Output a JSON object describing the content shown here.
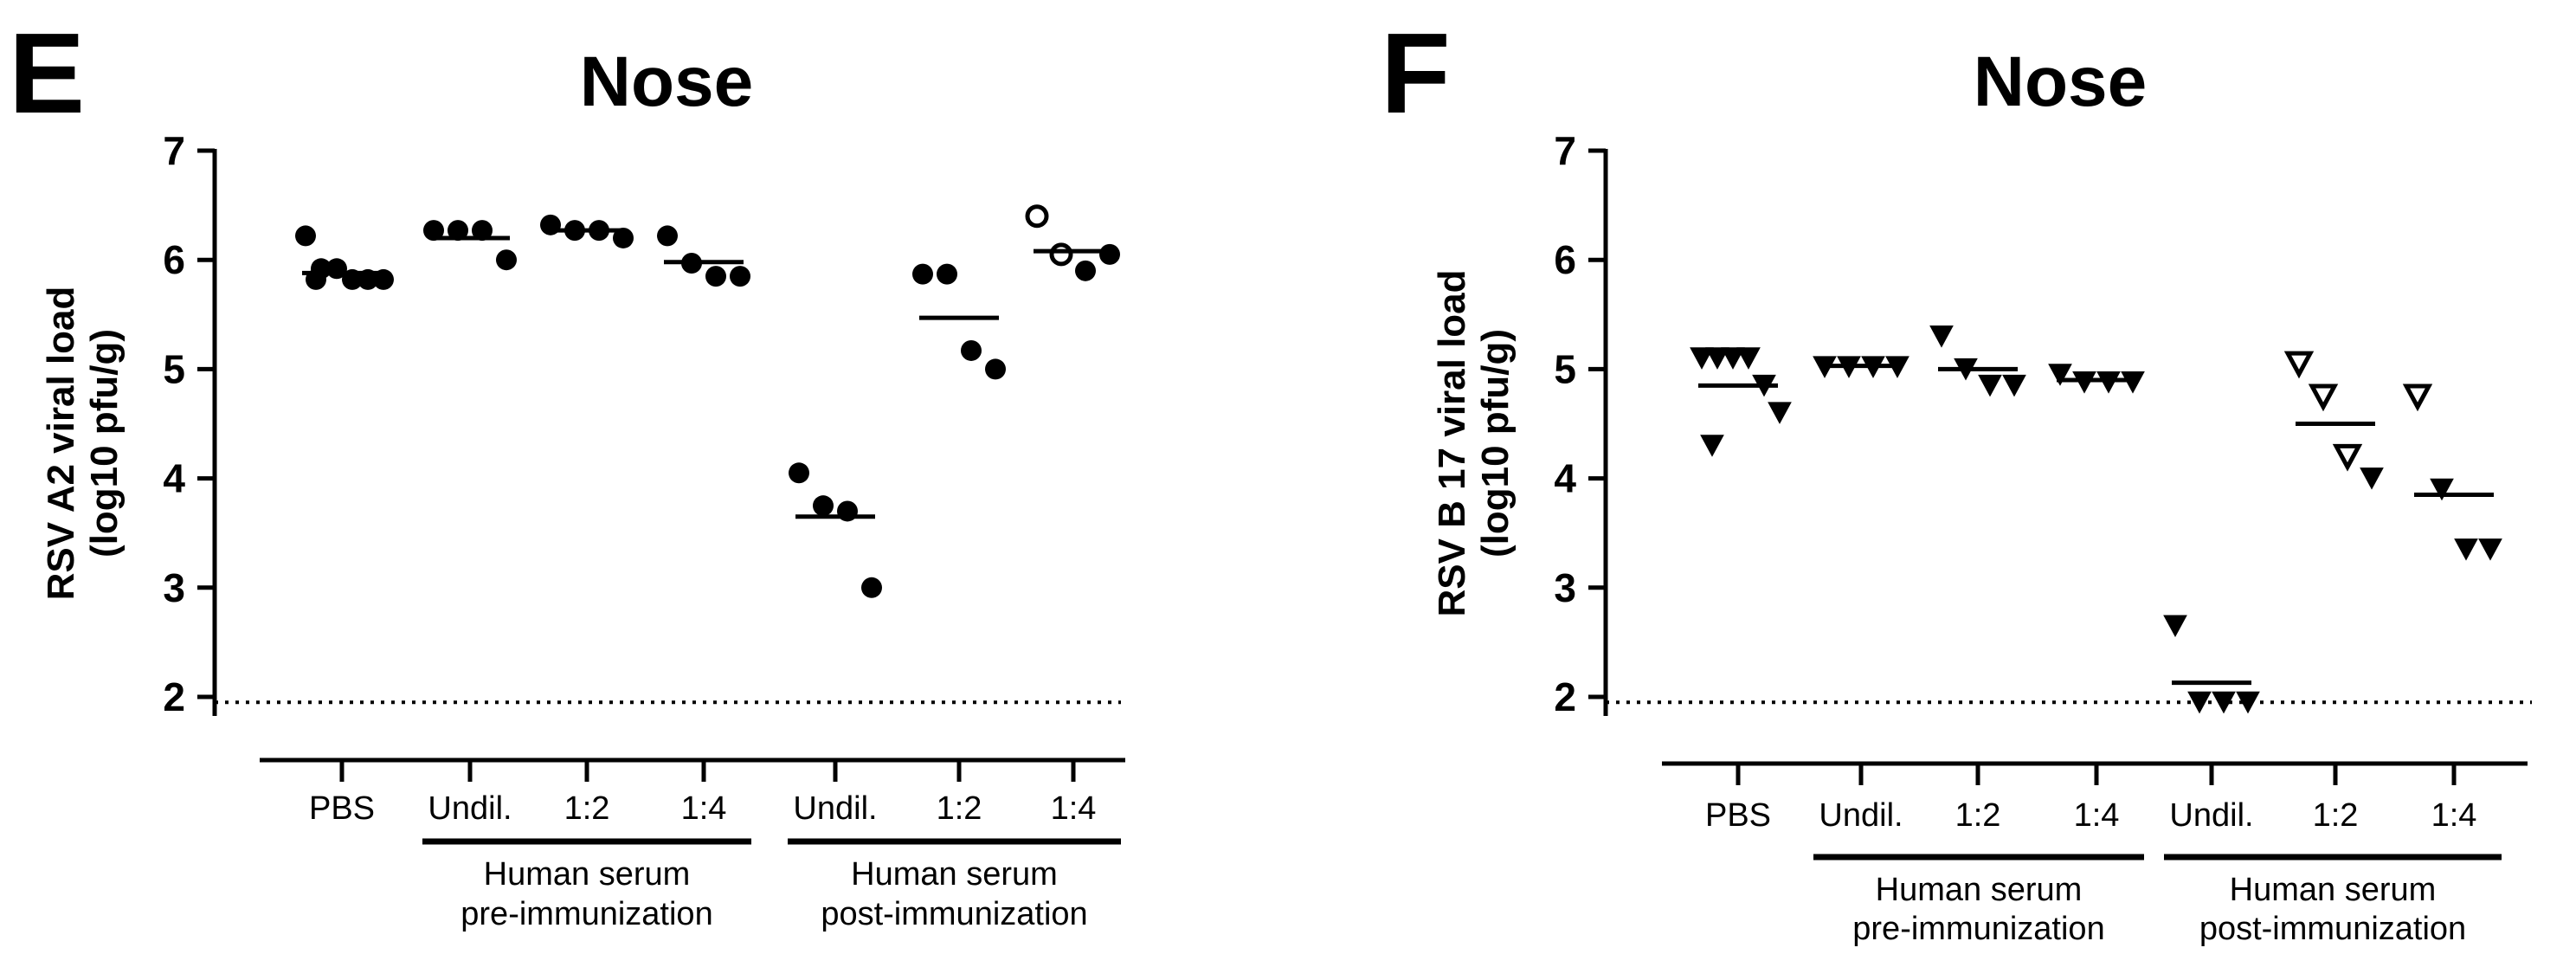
{
  "chart_data": [
    {
      "type": "scatter",
      "panel": "E",
      "title": "Nose",
      "ylabel_line1": "RSV  A2 viral load",
      "ylabel_line2": "(log10 pfu/g)",
      "ylim": [
        2,
        7
      ],
      "yticks": [
        "2",
        "3",
        "4",
        "5",
        "6",
        "7"
      ],
      "detection_limit": 1.95,
      "marker": "circle",
      "categories": [
        "PBS",
        "Undil.",
        "1:2",
        "1:4",
        "Undil.",
        "1:2",
        "1:4"
      ],
      "groups": [
        {
          "line1": "Human serum",
          "line2": "pre-immunization",
          "from": 1,
          "to": 3
        },
        {
          "line1": "Human serum",
          "line2": "post-immunization",
          "from": 4,
          "to": 6
        }
      ],
      "series": [
        {
          "name": "PBS",
          "values": [
            6.22,
            5.92,
            5.92,
            5.82,
            5.82,
            5.82,
            5.82
          ],
          "filled": [
            true,
            true,
            true,
            true,
            true,
            true,
            true
          ],
          "mean": 5.88
        },
        {
          "name": "Undil.",
          "values": [
            6.27,
            6.27,
            6.27,
            6.0
          ],
          "filled": [
            true,
            true,
            true,
            true
          ],
          "mean": 6.2
        },
        {
          "name": "1:2",
          "values": [
            6.32,
            6.27,
            6.27,
            6.2
          ],
          "filled": [
            true,
            true,
            true,
            true
          ],
          "mean": 6.27
        },
        {
          "name": "1:4",
          "values": [
            6.22,
            5.97,
            5.85,
            5.85
          ],
          "filled": [
            true,
            true,
            true,
            true
          ],
          "mean": 5.98
        },
        {
          "name": "Undil.",
          "values": [
            4.05,
            3.75,
            3.7,
            3.0
          ],
          "filled": [
            true,
            true,
            true,
            true
          ],
          "mean": 3.65
        },
        {
          "name": "1:2",
          "values": [
            5.87,
            5.87,
            5.17,
            5.0
          ],
          "filled": [
            true,
            true,
            true,
            true
          ],
          "mean": 5.47
        },
        {
          "name": "1:4",
          "values": [
            6.4,
            6.05,
            5.9,
            6.05
          ],
          "filled": [
            false,
            false,
            true,
            true
          ],
          "mean": 6.08
        }
      ]
    },
    {
      "type": "scatter",
      "panel": "F",
      "title": "Nose",
      "ylabel_line1": "RSV B 17 viral load",
      "ylabel_line2": "(log10 pfu/g)",
      "ylim": [
        2,
        7
      ],
      "yticks": [
        "2",
        "3",
        "4",
        "5",
        "6",
        "7"
      ],
      "detection_limit": 1.95,
      "marker": "triangle-down",
      "categories": [
        "PBS",
        "Undil.",
        "1:2",
        "1:4",
        "Undil.",
        "1:2",
        "1:4"
      ],
      "groups": [
        {
          "line1": "Human serum",
          "line2": "pre-immunization",
          "from": 1,
          "to": 3
        },
        {
          "line1": "Human serum",
          "line2": "post-immunization",
          "from": 4,
          "to": 6
        }
      ],
      "series": [
        {
          "name": "PBS",
          "values": [
            5.1,
            5.1,
            5.1,
            5.1,
            4.85,
            4.6,
            4.3
          ],
          "filled": [
            true,
            true,
            true,
            true,
            true,
            true,
            true
          ],
          "mean": 4.85
        },
        {
          "name": "Undil.",
          "values": [
            5.02,
            5.02,
            5.02,
            5.02
          ],
          "filled": [
            true,
            true,
            true,
            true
          ],
          "mean": 5.03
        },
        {
          "name": "1:2",
          "values": [
            5.3,
            5.0,
            4.85,
            4.85
          ],
          "filled": [
            true,
            true,
            true,
            true
          ],
          "mean": 5.0
        },
        {
          "name": "1:4",
          "values": [
            4.95,
            4.88,
            4.88,
            4.88
          ],
          "filled": [
            true,
            true,
            true,
            true
          ],
          "mean": 4.9
        },
        {
          "name": "Undil.",
          "values": [
            2.65,
            1.95,
            1.95,
            1.95
          ],
          "filled": [
            true,
            true,
            true,
            true
          ],
          "mean": 2.13
        },
        {
          "name": "1:2",
          "values": [
            5.05,
            4.75,
            4.2,
            4.0
          ],
          "filled": [
            false,
            false,
            false,
            true
          ],
          "mean": 4.5
        },
        {
          "name": "1:4",
          "values": [
            4.75,
            3.9,
            3.35,
            3.35
          ],
          "filled": [
            false,
            true,
            true,
            true
          ],
          "mean": 3.85
        }
      ]
    }
  ]
}
